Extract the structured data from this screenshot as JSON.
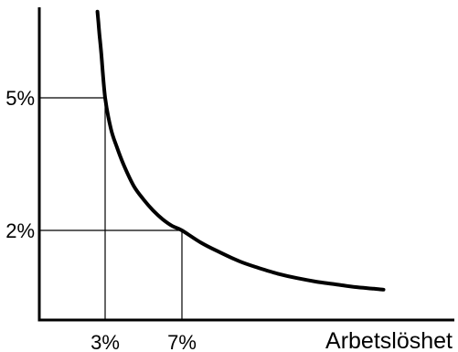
{
  "chart_data": {
    "type": "line",
    "title": "",
    "xlabel": "Arbetslöshet",
    "ylabel": "",
    "grid": false,
    "x_ticks": [
      {
        "value": 3,
        "label": "3%"
      },
      {
        "value": 7,
        "label": "7%"
      }
    ],
    "y_ticks": [
      {
        "value": 2,
        "label": "2%"
      },
      {
        "value": 5,
        "label": "5%"
      }
    ],
    "reference_points": [
      {
        "x": 3,
        "y": 5
      },
      {
        "x": 7,
        "y": 2
      }
    ],
    "series": [
      {
        "x": [
          2.6,
          2.65,
          2.7,
          2.8,
          3.0,
          3.3,
          3.6,
          4.0,
          4.5,
          5.0,
          5.5,
          6.0,
          6.5,
          7.0,
          8.0,
          9.0,
          10.0,
          11.0,
          12.0,
          13.0,
          14.0,
          15.0,
          16.0,
          17.0,
          17.5
        ],
        "y": [
          6.95,
          6.7,
          6.45,
          6.0,
          5.0,
          4.3,
          3.9,
          3.45,
          3.0,
          2.7,
          2.45,
          2.25,
          2.1,
          2.0,
          1.72,
          1.5,
          1.3,
          1.15,
          1.02,
          0.92,
          0.84,
          0.78,
          0.72,
          0.68,
          0.66
        ]
      }
    ],
    "colors": {
      "curve": "#000000",
      "axes": "#000000",
      "guides": "#000000"
    }
  }
}
